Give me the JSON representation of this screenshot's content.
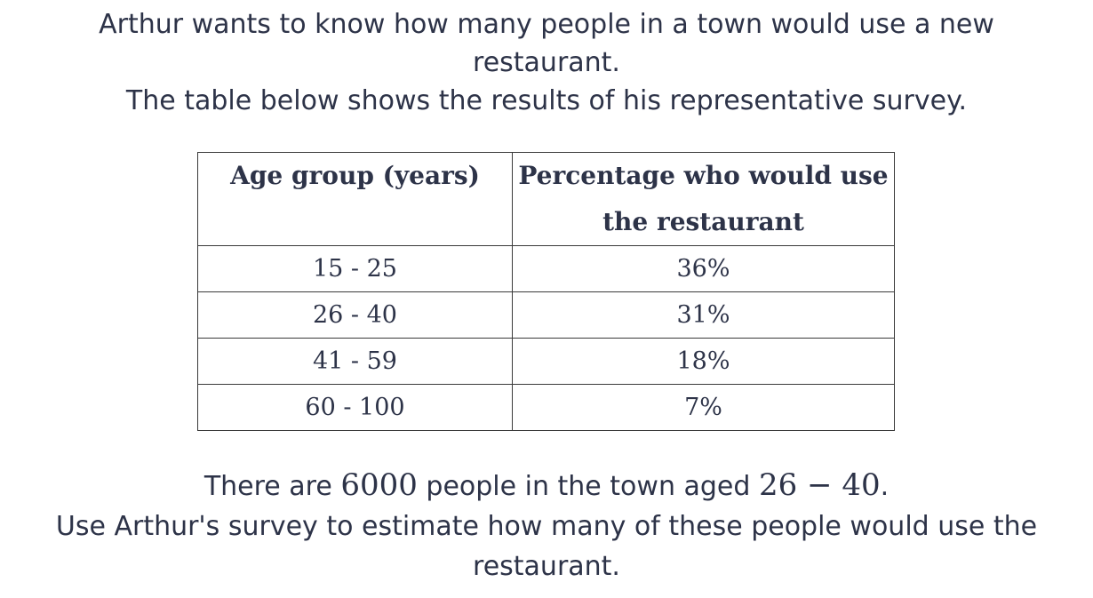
{
  "intro": {
    "line1": "Arthur wants to know how many people in a town would use a new restaurant.",
    "line2": "The table below shows the results of his representative survey."
  },
  "table": {
    "headers": [
      "Age group (years)",
      "Percentage who would use the restaurant"
    ],
    "rows": [
      {
        "age": "15 - 25",
        "pct": "36%"
      },
      {
        "age": "26 - 40",
        "pct": "31%"
      },
      {
        "age": "41 - 59",
        "pct": "18%"
      },
      {
        "age": "60 - 100",
        "pct": "7%"
      }
    ]
  },
  "question": {
    "pre": "There are ",
    "population": "6000",
    "mid": " people in the town aged ",
    "age_range": "26 − 40",
    "post": ".",
    "line2": "Use Arthur's survey to estimate how many of these people would use the restaurant."
  }
}
